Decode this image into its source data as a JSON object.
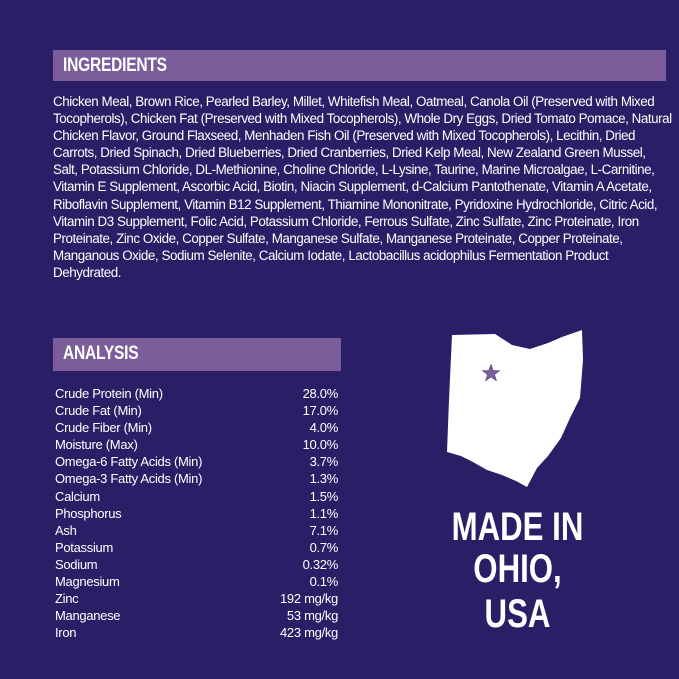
{
  "colors": {
    "background": "#2a1f66",
    "header_bar": "#7c5d9c",
    "map": "#ffffff",
    "star": "#7c5d9c"
  },
  "ingredients": {
    "title": "INGREDIENTS",
    "text": "Chicken Meal, Brown Rice, Pearled Barley, Millet, Whitefish Meal, Oatmeal, Canola Oil (Preserved with Mixed Tocopherols), Chicken Fat (Preserved with Mixed Tocopherols), Whole Dry Eggs, Dried Tomato Pomace, Natural Chicken Flavor, Ground Flaxseed, Menhaden Fish Oil (Preserved with Mixed Tocopherols), Lecithin, Dried Carrots, Dried Spinach, Dried Blueberries, Dried Cranberries, Dried Kelp Meal, New Zealand Green Mussel, Salt, Potassium Chloride, DL-Methionine, Choline Chloride, L-Lysine, Taurine, Marine Microalgae, L-Carnitine, Vitamin E Supplement, Ascorbic Acid, Biotin, Niacin Supplement, d-Calcium Pantothenate, Vitamin A Acetate, Riboflavin Supplement, Vitamin B12 Supplement, Thiamine Mononitrate, Pyridoxine Hydrochloride, Citric Acid, Vitamin D3 Supplement, Folic Acid, Potassium Chloride, Ferrous Sulfate, Zinc Sulfate, Zinc Proteinate, Iron Proteinate, Zinc Oxide, Copper Sulfate, Manganese Sulfate, Manganese Proteinate, Copper Proteinate, Manganous Oxide, Sodium Selenite, Calcium Iodate, Lactobacillus acidophilus Fermentation Product Dehydrated."
  },
  "analysis": {
    "title": "ANALYSIS",
    "rows": [
      {
        "name": "Crude Protein  (Min)",
        "value": "28.0%"
      },
      {
        "name": "Crude Fat (Min)",
        "value": "17.0%"
      },
      {
        "name": "Crude Fiber (Min)",
        "value": "4.0%"
      },
      {
        "name": "Moisture (Max)",
        "value": "10.0%"
      },
      {
        "name": "Omega-6 Fatty Acids (Min)",
        "value": "3.7%"
      },
      {
        "name": "Omega-3 Fatty Acids (Min)",
        "value": "1.3%"
      },
      {
        "name": "Calcium",
        "value": "1.5%"
      },
      {
        "name": "Phosphorus",
        "value": "1.1%"
      },
      {
        "name": "Ash",
        "value": "7.1%"
      },
      {
        "name": "Potassium",
        "value": "0.7%"
      },
      {
        "name": "Sodium",
        "value": "0.32%"
      },
      {
        "name": "Magnesium",
        "value": "0.1%"
      },
      {
        "name": "Zinc",
        "value": "192 mg/kg"
      },
      {
        "name": "Manganese",
        "value": "53 mg/kg"
      },
      {
        "name": "Iron",
        "value": "423 mg/kg"
      }
    ]
  },
  "origin": {
    "line1": "MADE IN",
    "line2": "OHIO, USA",
    "map_icon": "ohio-state-map",
    "marker_icon": "star"
  }
}
